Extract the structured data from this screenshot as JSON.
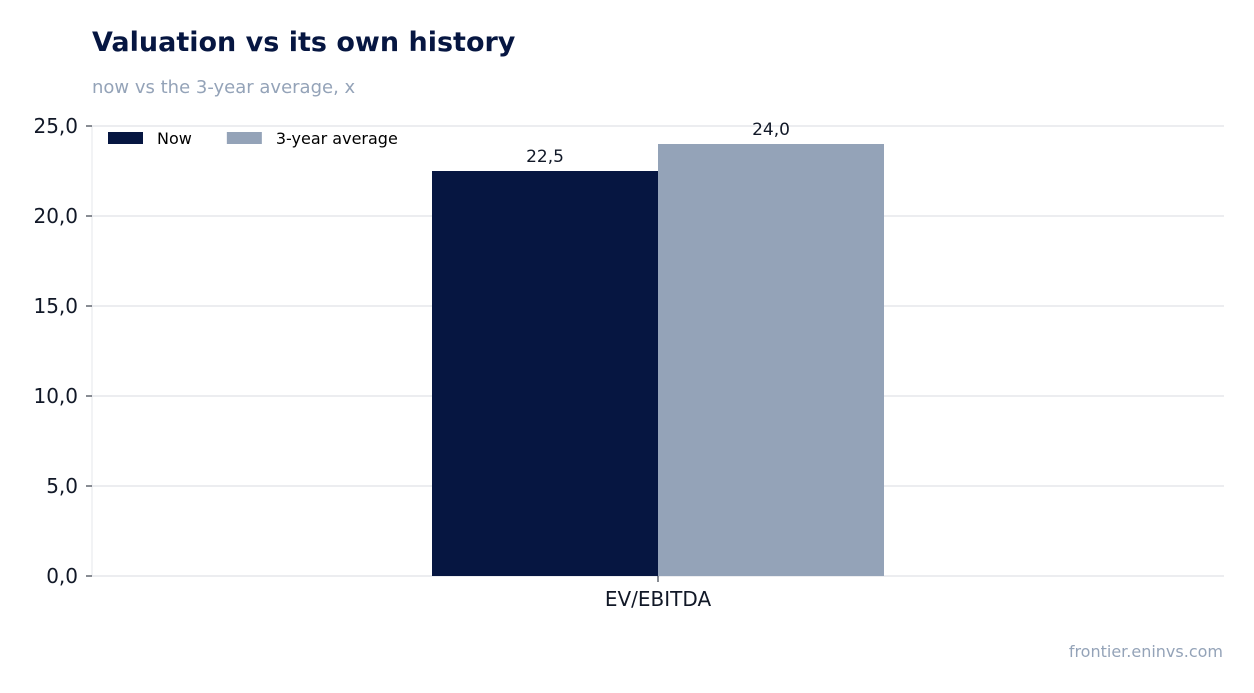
{
  "header": {
    "title": "Valuation vs its own history",
    "subtitle": "now vs the 3-year average, x"
  },
  "footer": {
    "source": "frontier.eninvs.com"
  },
  "colors": {
    "now": "#061641",
    "average": "#94a3b8",
    "grid": "#e5e7eb",
    "axis_text": "#111827"
  },
  "chart_data": {
    "type": "bar",
    "title": "Valuation vs its own history",
    "subtitle": "now vs the 3-year average, x",
    "xlabel": "",
    "ylabel": "",
    "categories": [
      "EV/EBITDA"
    ],
    "series": [
      {
        "name": "Now",
        "values": [
          22.5
        ],
        "labels": [
          "22,5"
        ],
        "color": "#061641"
      },
      {
        "name": "3-year average",
        "values": [
          24.0
        ],
        "labels": [
          "24,0"
        ],
        "color": "#94a3b8"
      }
    ],
    "ylim": [
      0,
      25
    ],
    "yticks": [
      0,
      5,
      10,
      15,
      20,
      25
    ],
    "ytick_labels": [
      "0,0",
      "5,0",
      "10,0",
      "15,0",
      "20,0",
      "25,0"
    ],
    "grid": true,
    "legend": "top-left"
  }
}
